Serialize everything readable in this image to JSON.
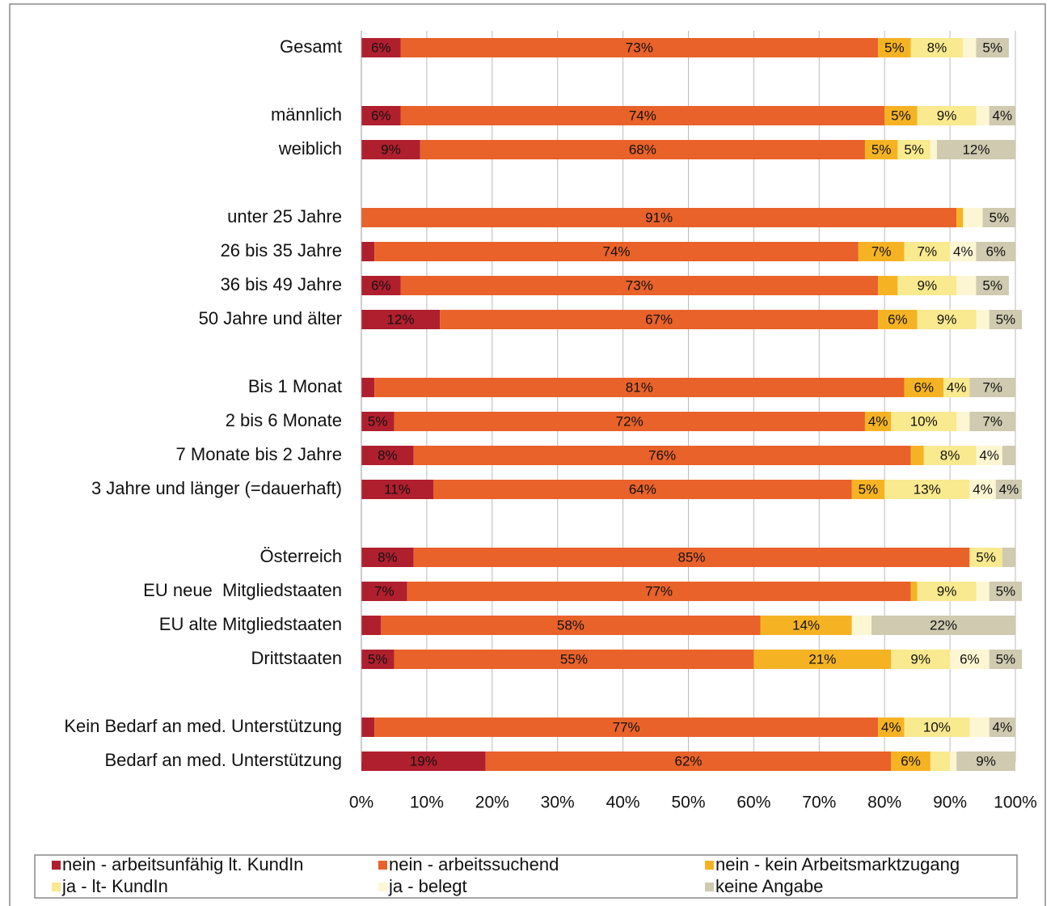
{
  "chart_data": {
    "type": "stacked-bar-horizontal",
    "categories": [
      "Gesamt",
      null,
      "männlich",
      "weiblich",
      null,
      "unter 25 Jahre",
      "26 bis 35 Jahre",
      "36 bis 49 Jahre",
      "50 Jahre und älter",
      null,
      "Bis 1 Monat",
      "2 bis 6 Monate",
      "7 Monate bis 2 Jahre",
      "3 Jahre und länger (=dauerhaft)",
      null,
      "Österreich",
      "EU neue  Mitgliedstaaten",
      "EU alte Mitgliedstaaten",
      "Drittstaaten",
      null,
      "Kein Bedarf an med. Unterstützung",
      "Bedarf an med. Unterstützung"
    ],
    "series": [
      {
        "name": "nein - arbeitsunfähig lt. KundIn",
        "color": "#b01f2e",
        "values": [
          6,
          null,
          6,
          9,
          null,
          0,
          2,
          6,
          12,
          null,
          2,
          5,
          8,
          11,
          null,
          8,
          7,
          3,
          5,
          null,
          2,
          19
        ],
        "value_labels": [
          "6%",
          null,
          "6%",
          "9%",
          null,
          null,
          null,
          "6%",
          "12%",
          null,
          null,
          "5%",
          "8%",
          "11%",
          null,
          "8%",
          "7%",
          null,
          "5%",
          null,
          null,
          "19%"
        ]
      },
      {
        "name": "nein - arbeitssuchend",
        "color": "#e8622a",
        "values": [
          73,
          null,
          74,
          68,
          null,
          91,
          74,
          73,
          67,
          null,
          81,
          72,
          76,
          64,
          null,
          85,
          77,
          58,
          55,
          null,
          77,
          62
        ],
        "value_labels": [
          "73%",
          null,
          "74%",
          "68%",
          null,
          "91%",
          "74%",
          "73%",
          "67%",
          null,
          "81%",
          "72%",
          "76%",
          "64%",
          null,
          "85%",
          "77%",
          "58%",
          "55%",
          null,
          "77%",
          "62%"
        ]
      },
      {
        "name": "nein - kein Arbeitsmarktzugang",
        "color": "#f5b324",
        "values": [
          5,
          null,
          5,
          5,
          null,
          1,
          7,
          3,
          6,
          null,
          6,
          4,
          2,
          5,
          null,
          0,
          1,
          14,
          21,
          null,
          4,
          6
        ],
        "value_labels": [
          "5%",
          null,
          "5%",
          "5%",
          null,
          null,
          "7%",
          null,
          "6%",
          null,
          "6%",
          "4%",
          null,
          "5%",
          null,
          null,
          null,
          "14%",
          "21%",
          null,
          "4%",
          "6%"
        ]
      },
      {
        "name": "ja - lt- KundIn",
        "color": "#f9e98f",
        "values": [
          8,
          null,
          9,
          5,
          null,
          0,
          7,
          9,
          9,
          null,
          4,
          10,
          8,
          13,
          null,
          5,
          9,
          0,
          9,
          null,
          10,
          3
        ],
        "value_labels": [
          "8%",
          null,
          "9%",
          "5%",
          null,
          null,
          "7%",
          "9%",
          "9%",
          null,
          "4%",
          "10%",
          "8%",
          "13%",
          null,
          "5%",
          "9%",
          null,
          "9%",
          null,
          "10%",
          null
        ]
      },
      {
        "name": "ja - belegt",
        "color": "#fdf6d2",
        "values": [
          2,
          null,
          2,
          1,
          null,
          3,
          4,
          3,
          2,
          null,
          0,
          2,
          4,
          4,
          null,
          0,
          2,
          3,
          6,
          null,
          3,
          1
        ],
        "value_labels": [
          null,
          null,
          null,
          null,
          null,
          null,
          "4%",
          null,
          null,
          null,
          null,
          null,
          "4%",
          "4%",
          null,
          null,
          null,
          null,
          "6%",
          null,
          null,
          null
        ]
      },
      {
        "name": "keine Angabe",
        "color": "#cfcab0",
        "values": [
          5,
          null,
          4,
          12,
          null,
          5,
          6,
          5,
          5,
          null,
          7,
          7,
          2,
          4,
          null,
          2,
          5,
          22,
          5,
          null,
          4,
          9
        ],
        "value_labels": [
          "5%",
          null,
          "4%",
          "12%",
          null,
          "5%",
          "6%",
          "5%",
          "5%",
          null,
          "7%",
          "7%",
          null,
          "4%",
          null,
          null,
          "5%",
          "22%",
          "5%",
          null,
          "4%",
          "9%"
        ]
      }
    ],
    "xlim": [
      0,
      100
    ],
    "xticks": [
      {
        "value": 0,
        "label": "0%"
      },
      {
        "value": 10,
        "label": "10%"
      },
      {
        "value": 20,
        "label": "20%"
      },
      {
        "value": 30,
        "label": "30%"
      },
      {
        "value": 40,
        "label": "40%"
      },
      {
        "value": 50,
        "label": "50%"
      },
      {
        "value": 60,
        "label": "60%"
      },
      {
        "value": 70,
        "label": "70%"
      },
      {
        "value": 80,
        "label": "80%"
      },
      {
        "value": 90,
        "label": "90%"
      },
      {
        "value": 100,
        "label": "100%"
      }
    ],
    "grid": true,
    "legend": "bottom"
  }
}
